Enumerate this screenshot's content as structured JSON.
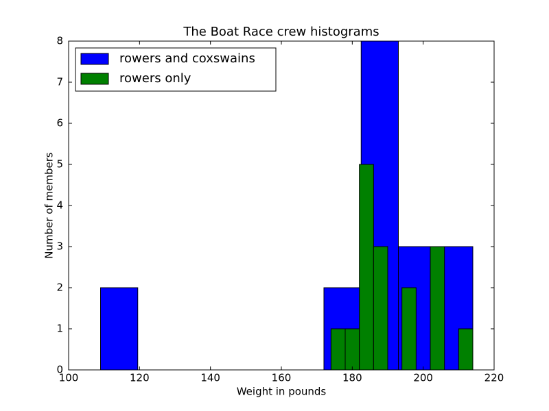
{
  "chart_data": {
    "type": "histogram",
    "title": "The Boat Race crew histograms",
    "xlabel": "Weight in pounds",
    "ylabel": "Number of members",
    "series": [
      {
        "name": "rowers and coxswains",
        "color": "#0000ff",
        "bins": [
          109,
          119.5,
          130,
          140.5,
          151,
          161.5,
          172,
          182.5,
          193,
          203.5,
          214
        ],
        "values": [
          2,
          0,
          0,
          0,
          0,
          0,
          2,
          8,
          3,
          3
        ]
      },
      {
        "name": "rowers only",
        "color": "#008000",
        "bins": [
          174,
          178,
          182,
          186,
          190,
          194,
          198,
          202,
          206,
          210,
          214
        ],
        "values": [
          1,
          1,
          5,
          3,
          0,
          2,
          0,
          3,
          0,
          1
        ]
      }
    ],
    "xlim": [
      100,
      220
    ],
    "xticks": [
      100,
      120,
      140,
      160,
      180,
      200,
      220
    ],
    "ylim": [
      0,
      8
    ],
    "yticks": [
      0,
      1,
      2,
      3,
      4,
      5,
      6,
      7,
      8
    ],
    "legend": "upper left"
  }
}
